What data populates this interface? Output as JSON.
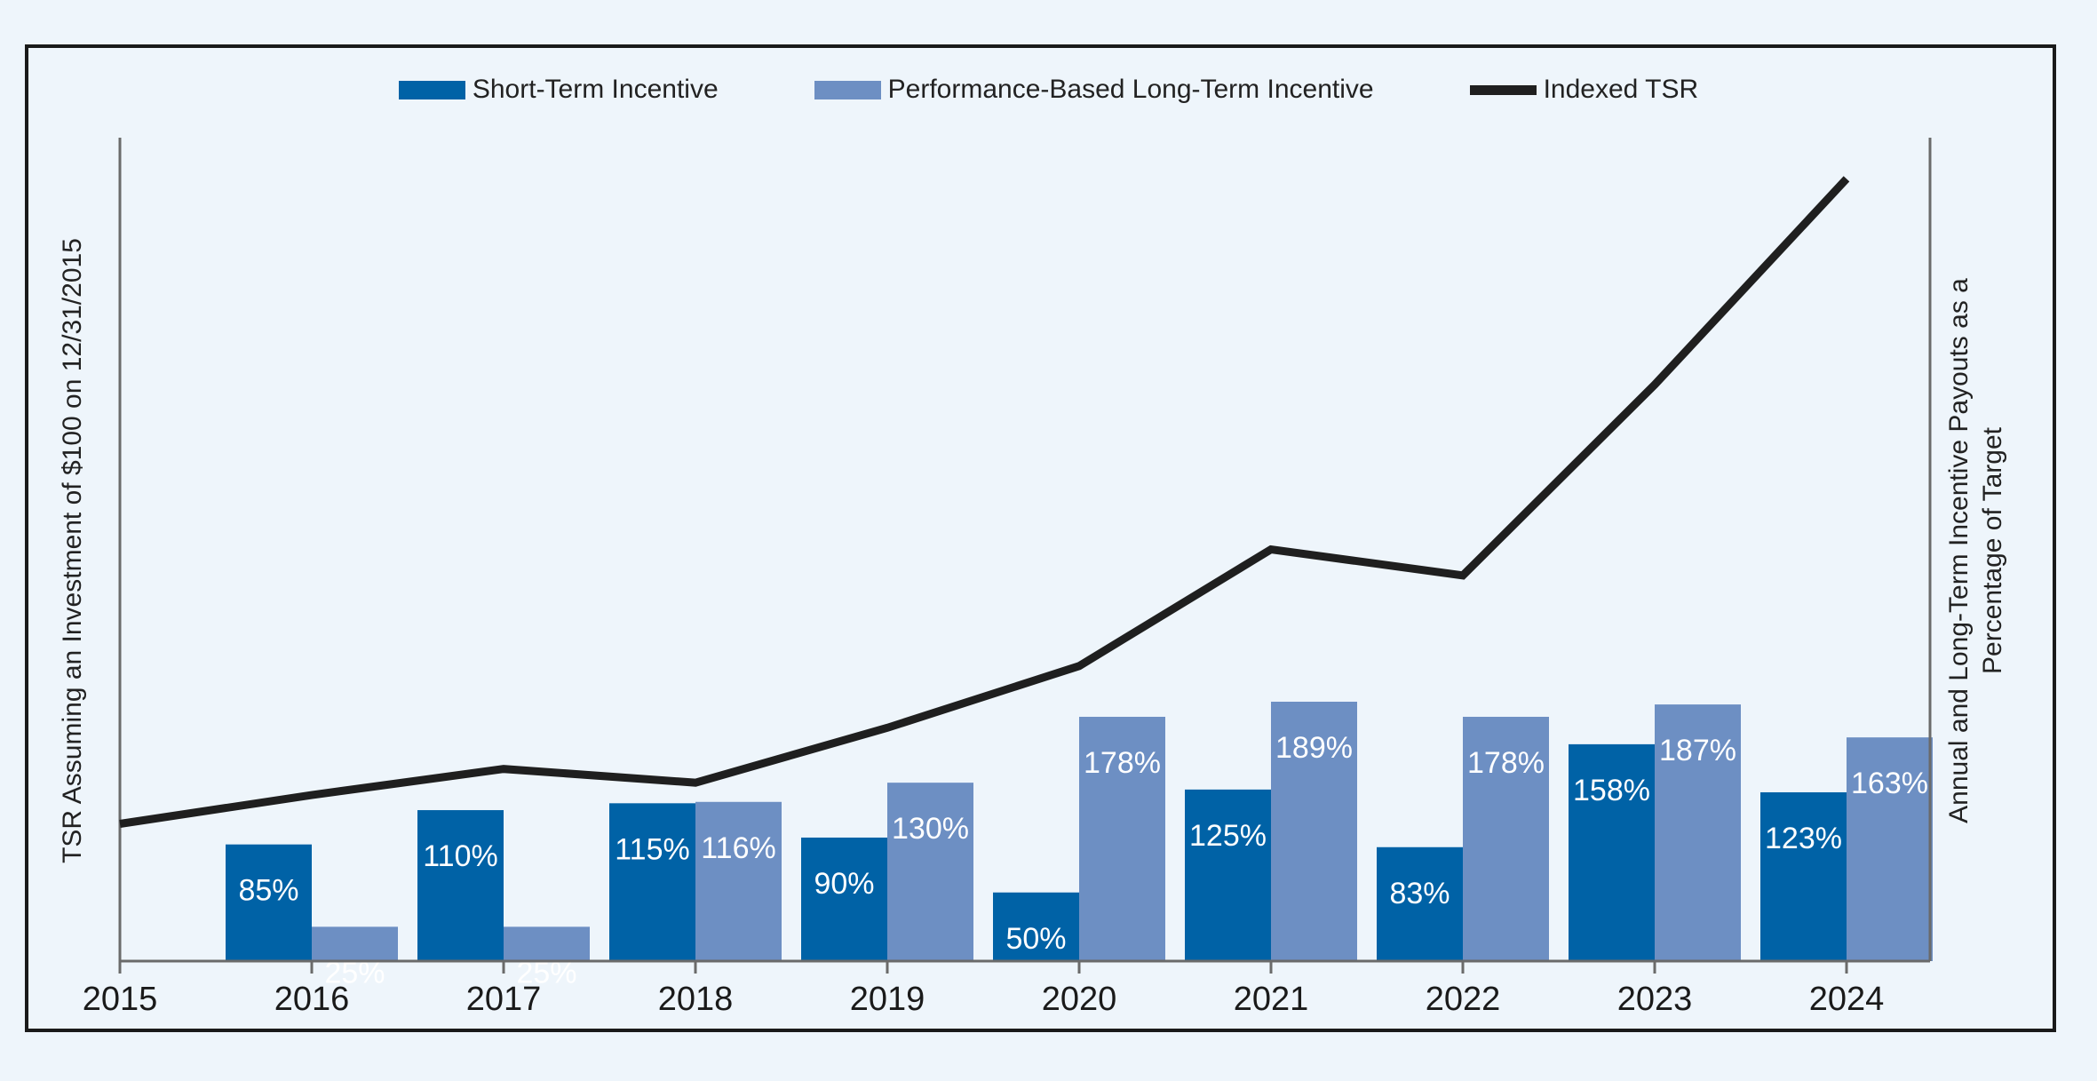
{
  "colors": {
    "background": "#eef5fb",
    "short_term": "#0062a6",
    "long_term": "#6d8fc3",
    "tsr_line": "#1f1f1f",
    "axis": "#6a6a6a"
  },
  "legend": [
    {
      "label": "Short-Term Incentive",
      "kind": "bar",
      "color": "#0062a6"
    },
    {
      "label": "Performance-Based Long-Term Incentive",
      "kind": "bar",
      "color": "#6d8fc3"
    },
    {
      "label": "Indexed TSR",
      "kind": "line",
      "color": "#1f1f1f"
    }
  ],
  "chart_data": {
    "type": "bar",
    "categories": [
      "2015",
      "2016",
      "2017",
      "2018",
      "2019",
      "2020",
      "2021",
      "2022",
      "2023",
      "2024"
    ],
    "series": [
      {
        "name": "Short-Term Incentive",
        "kind": "bar",
        "axis": "right",
        "values": [
          null,
          85,
          110,
          115,
          90,
          50,
          125,
          83,
          158,
          123
        ],
        "labels": [
          "",
          "85%",
          "110%",
          "115%",
          "90%",
          "50%",
          "125%",
          "83%",
          "158%",
          "123%"
        ]
      },
      {
        "name": "Performance-Based Long-Term Incentive",
        "kind": "bar",
        "axis": "right",
        "values": [
          null,
          25,
          25,
          116,
          130,
          178,
          189,
          178,
          187,
          163
        ],
        "labels": [
          "",
          "25%",
          "25%",
          "116%",
          "130%",
          "178%",
          "189%",
          "178%",
          "187%",
          "163%"
        ]
      },
      {
        "name": "Indexed TSR",
        "kind": "line",
        "axis": "left",
        "values": [
          100,
          121,
          140,
          130,
          170,
          215,
          300,
          281,
          420,
          570
        ]
      }
    ],
    "ylabel_left": "TSR Assuming an Investment of $100 on 12/31/2015",
    "ylabel_right_lines": [
      "Annual and Long-Term Incentive Payouts as a",
      "Percentage of Target"
    ],
    "ylim_left": [
      0,
      600
    ],
    "ylim_right": [
      0,
      600
    ],
    "grid": false,
    "legend_position": "top"
  }
}
